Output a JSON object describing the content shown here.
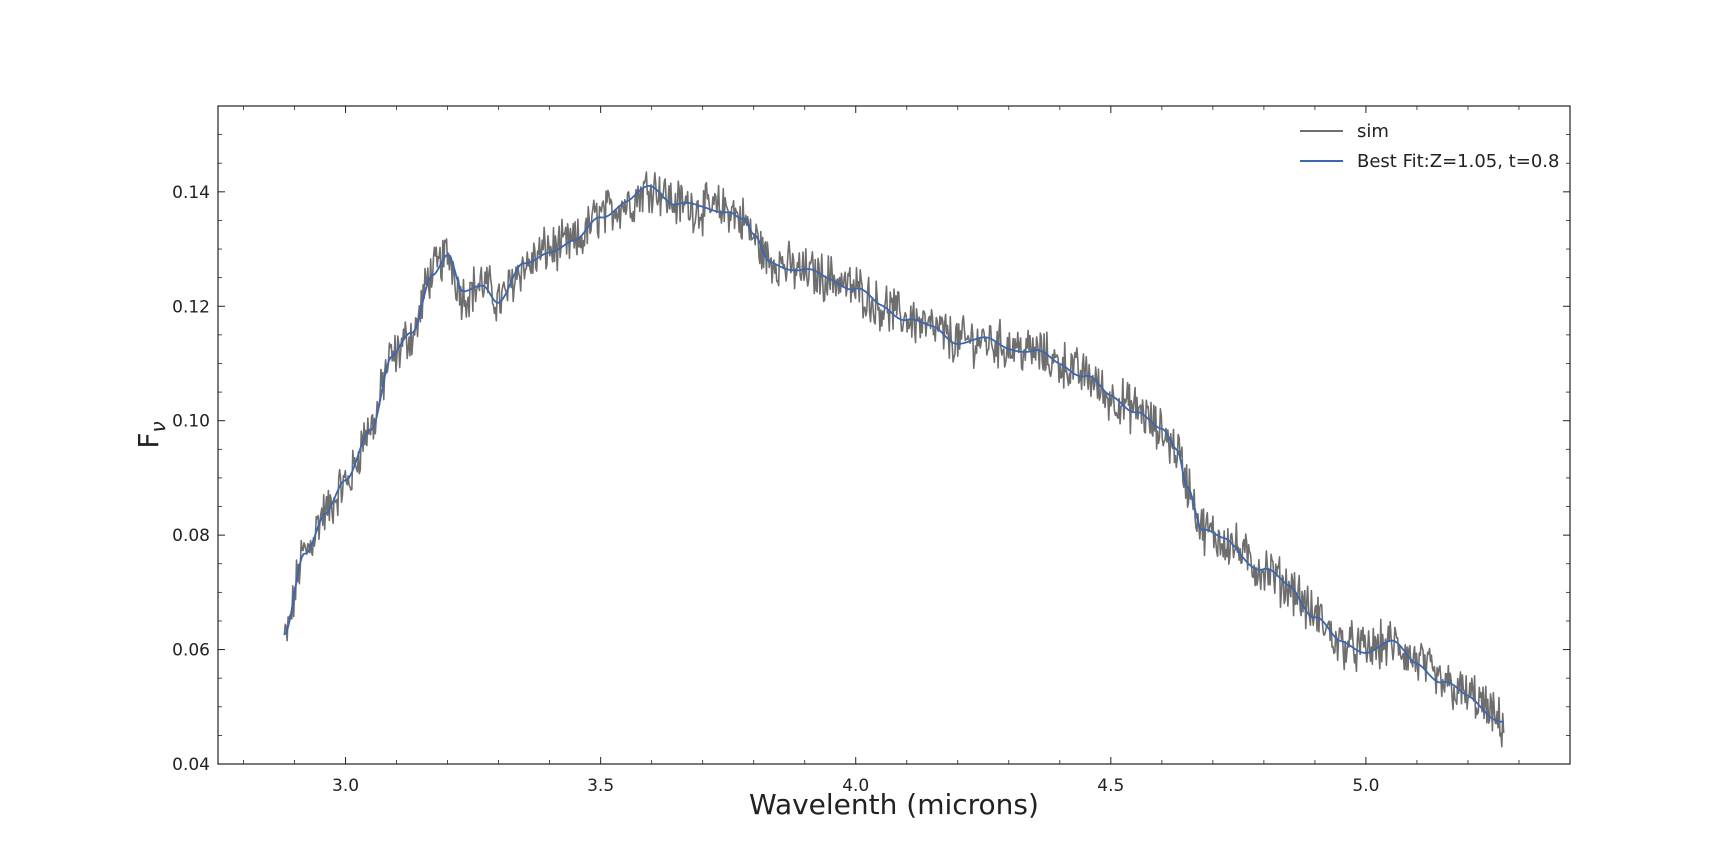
{
  "chart_data": {
    "type": "line",
    "title": "",
    "xlabel": "Wavelenth (microns)",
    "ylabel_main": "F",
    "ylabel_sub": "ν",
    "xlim": [
      2.75,
      5.4
    ],
    "ylim": [
      0.04,
      0.155
    ],
    "xticks": [
      3.0,
      3.5,
      4.0,
      4.5,
      5.0
    ],
    "xtick_labels": [
      "3.0",
      "3.5",
      "4.0",
      "4.5",
      "5.0"
    ],
    "yticks": [
      0.04,
      0.06,
      0.08,
      0.1,
      0.12,
      0.14
    ],
    "ytick_labels": [
      "0.04",
      "0.06",
      "0.08",
      "0.10",
      "0.12",
      "0.14"
    ],
    "grid": false,
    "legend_position": "top-right",
    "series": [
      {
        "name": "sim",
        "color": "#6e6e6e",
        "noisy": true,
        "noise_amplitude": 0.0035,
        "x": [
          2.88,
          2.92,
          2.96,
          3.0,
          3.05,
          3.09,
          3.13,
          3.17,
          3.2,
          3.23,
          3.27,
          3.3,
          3.35,
          3.4,
          3.45,
          3.5,
          3.55,
          3.6,
          3.65,
          3.7,
          3.75,
          3.78,
          3.8,
          3.83,
          3.9,
          3.95,
          4.0,
          4.05,
          4.1,
          4.15,
          4.2,
          4.25,
          4.3,
          4.35,
          4.4,
          4.45,
          4.5,
          4.55,
          4.6,
          4.63,
          4.65,
          4.68,
          4.72,
          4.8,
          4.85,
          4.9,
          4.95,
          5.0,
          5.05,
          5.1,
          5.15,
          5.2,
          5.27
        ],
        "y": [
          0.062,
          0.077,
          0.084,
          0.089,
          0.099,
          0.111,
          0.115,
          0.126,
          0.129,
          0.122,
          0.124,
          0.121,
          0.127,
          0.13,
          0.131,
          0.136,
          0.138,
          0.141,
          0.138,
          0.137,
          0.137,
          0.135,
          0.132,
          0.128,
          0.126,
          0.125,
          0.123,
          0.12,
          0.118,
          0.116,
          0.114,
          0.114,
          0.113,
          0.112,
          0.11,
          0.108,
          0.104,
          0.102,
          0.098,
          0.095,
          0.089,
          0.081,
          0.079,
          0.074,
          0.071,
          0.066,
          0.061,
          0.06,
          0.061,
          0.058,
          0.054,
          0.052,
          0.047
        ]
      },
      {
        "name": "Best Fit:Z=1.05, t=0.8",
        "color": "#3c66b0",
        "noisy": false,
        "x": [
          2.88,
          2.92,
          2.96,
          3.0,
          3.05,
          3.09,
          3.13,
          3.17,
          3.2,
          3.23,
          3.27,
          3.3,
          3.35,
          3.4,
          3.45,
          3.5,
          3.55,
          3.6,
          3.65,
          3.7,
          3.75,
          3.78,
          3.8,
          3.83,
          3.9,
          3.95,
          4.0,
          4.05,
          4.1,
          4.15,
          4.2,
          4.25,
          4.3,
          4.35,
          4.4,
          4.45,
          4.5,
          4.55,
          4.6,
          4.63,
          4.65,
          4.68,
          4.72,
          4.8,
          4.85,
          4.9,
          4.95,
          5.0,
          5.05,
          5.1,
          5.15,
          5.2,
          5.27
        ],
        "y": [
          0.062,
          0.077,
          0.084,
          0.089,
          0.099,
          0.111,
          0.115,
          0.126,
          0.129,
          0.122,
          0.124,
          0.121,
          0.127,
          0.13,
          0.131,
          0.136,
          0.138,
          0.141,
          0.138,
          0.137,
          0.137,
          0.135,
          0.132,
          0.128,
          0.126,
          0.125,
          0.123,
          0.12,
          0.118,
          0.116,
          0.114,
          0.114,
          0.113,
          0.112,
          0.11,
          0.108,
          0.104,
          0.102,
          0.098,
          0.095,
          0.089,
          0.081,
          0.079,
          0.074,
          0.071,
          0.066,
          0.061,
          0.06,
          0.061,
          0.058,
          0.054,
          0.052,
          0.047
        ]
      }
    ]
  }
}
